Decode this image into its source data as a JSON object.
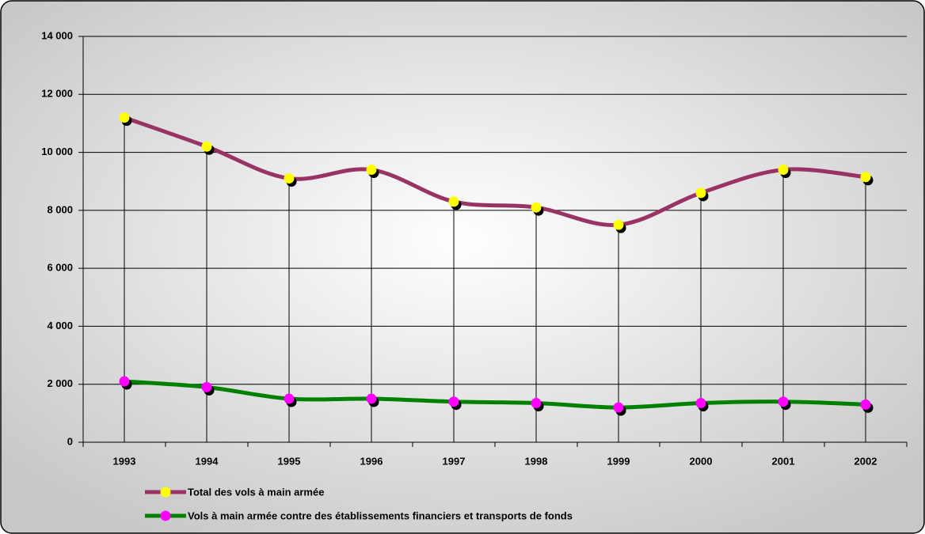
{
  "chart_data": {
    "type": "line",
    "categories": [
      "1993",
      "1994",
      "1995",
      "1996",
      "1997",
      "1998",
      "1999",
      "2000",
      "2001",
      "2002"
    ],
    "series": [
      {
        "name": "Total des vols à main armée",
        "color": "#993366",
        "marker_color": "#ffff00",
        "values": [
          11200,
          10200,
          9100,
          9400,
          8300,
          8100,
          7500,
          8600,
          9400,
          9150
        ]
      },
      {
        "name": "Vols à main armée contre des établissements financiers et transports de fonds",
        "color": "#008000",
        "marker_color": "#ff00ff",
        "values": [
          2100,
          1900,
          1500,
          1500,
          1400,
          1350,
          1200,
          1350,
          1400,
          1300
        ]
      }
    ],
    "ylim": [
      0,
      14000
    ],
    "yticks": [
      0,
      {
        "value": 2000,
        "label": "2 000"
      },
      {
        "value": 4000,
        "label": "4 000"
      },
      {
        "value": 6000,
        "label": "6 000"
      },
      {
        "value": 8000,
        "label": "8 000"
      },
      {
        "value": 10000,
        "label": "10 000"
      },
      {
        "value": 12000,
        "label": "12 000"
      },
      {
        "value": 14000,
        "label": "14 000"
      }
    ],
    "grid": true,
    "drop_lines": true
  }
}
